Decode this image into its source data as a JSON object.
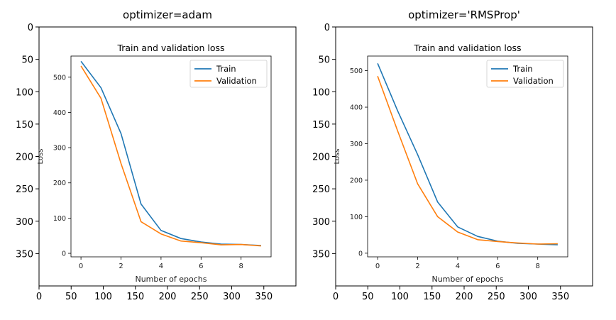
{
  "colors": {
    "train": "#1f77b4",
    "validation": "#ff7f0e",
    "axis": "#000000",
    "background": "#ffffff"
  },
  "chart_data": [
    {
      "type": "image",
      "title": "optimizer=adam",
      "xlim": [
        0,
        400
      ],
      "ylim": [
        400,
        0
      ],
      "xticks": [
        0,
        50,
        100,
        150,
        200,
        250,
        300,
        350
      ],
      "yticks": [
        0,
        50,
        100,
        150,
        200,
        250,
        300,
        350
      ],
      "inner_chart": {
        "type": "line",
        "title": "Train and validation loss",
        "xlabel": "Number of epochs",
        "ylabel": "Loss",
        "xlim": [
          -0.5,
          9.5
        ],
        "ylim": [
          -10,
          560
        ],
        "xticks": [
          0,
          2,
          4,
          6,
          8
        ],
        "yticks": [
          0,
          100,
          200,
          300,
          400,
          500
        ],
        "legend": "upper right",
        "x": [
          0,
          1,
          2,
          3,
          4,
          5,
          6,
          7,
          8,
          9
        ],
        "series": [
          {
            "name": "Train",
            "color_key": "train",
            "values": [
              545,
              470,
              340,
              140,
              65,
              42,
              32,
              26,
              25,
              22
            ]
          },
          {
            "name": "Validation",
            "color_key": "validation",
            "values": [
              532,
              440,
              255,
              90,
              55,
              35,
              30,
              24,
              25,
              21
            ]
          }
        ]
      }
    },
    {
      "type": "image",
      "title": "optimizer='RMSProp'",
      "xlim": [
        0,
        400
      ],
      "ylim": [
        400,
        0
      ],
      "xticks": [
        0,
        50,
        100,
        150,
        200,
        250,
        300,
        350
      ],
      "yticks": [
        0,
        50,
        100,
        150,
        200,
        250,
        300,
        350
      ],
      "inner_chart": {
        "type": "line",
        "title": "Train and validation loss",
        "xlabel": "Number of epochs",
        "ylabel": "Loss",
        "xlim": [
          -0.5,
          9.5
        ],
        "ylim": [
          -10,
          540
        ],
        "xticks": [
          0,
          2,
          4,
          6,
          8
        ],
        "yticks": [
          0,
          100,
          200,
          300,
          400,
          500
        ],
        "legend": "upper right",
        "x": [
          0,
          1,
          2,
          3,
          4,
          5,
          6,
          7,
          8,
          9
        ],
        "series": [
          {
            "name": "Train",
            "color_key": "train",
            "values": [
              520,
              390,
              270,
              140,
              72,
              46,
              33,
              27,
              25,
              23
            ]
          },
          {
            "name": "Validation",
            "color_key": "validation",
            "values": [
              485,
              335,
              190,
              100,
              58,
              37,
              32,
              28,
              25,
              26
            ]
          }
        ]
      }
    }
  ]
}
